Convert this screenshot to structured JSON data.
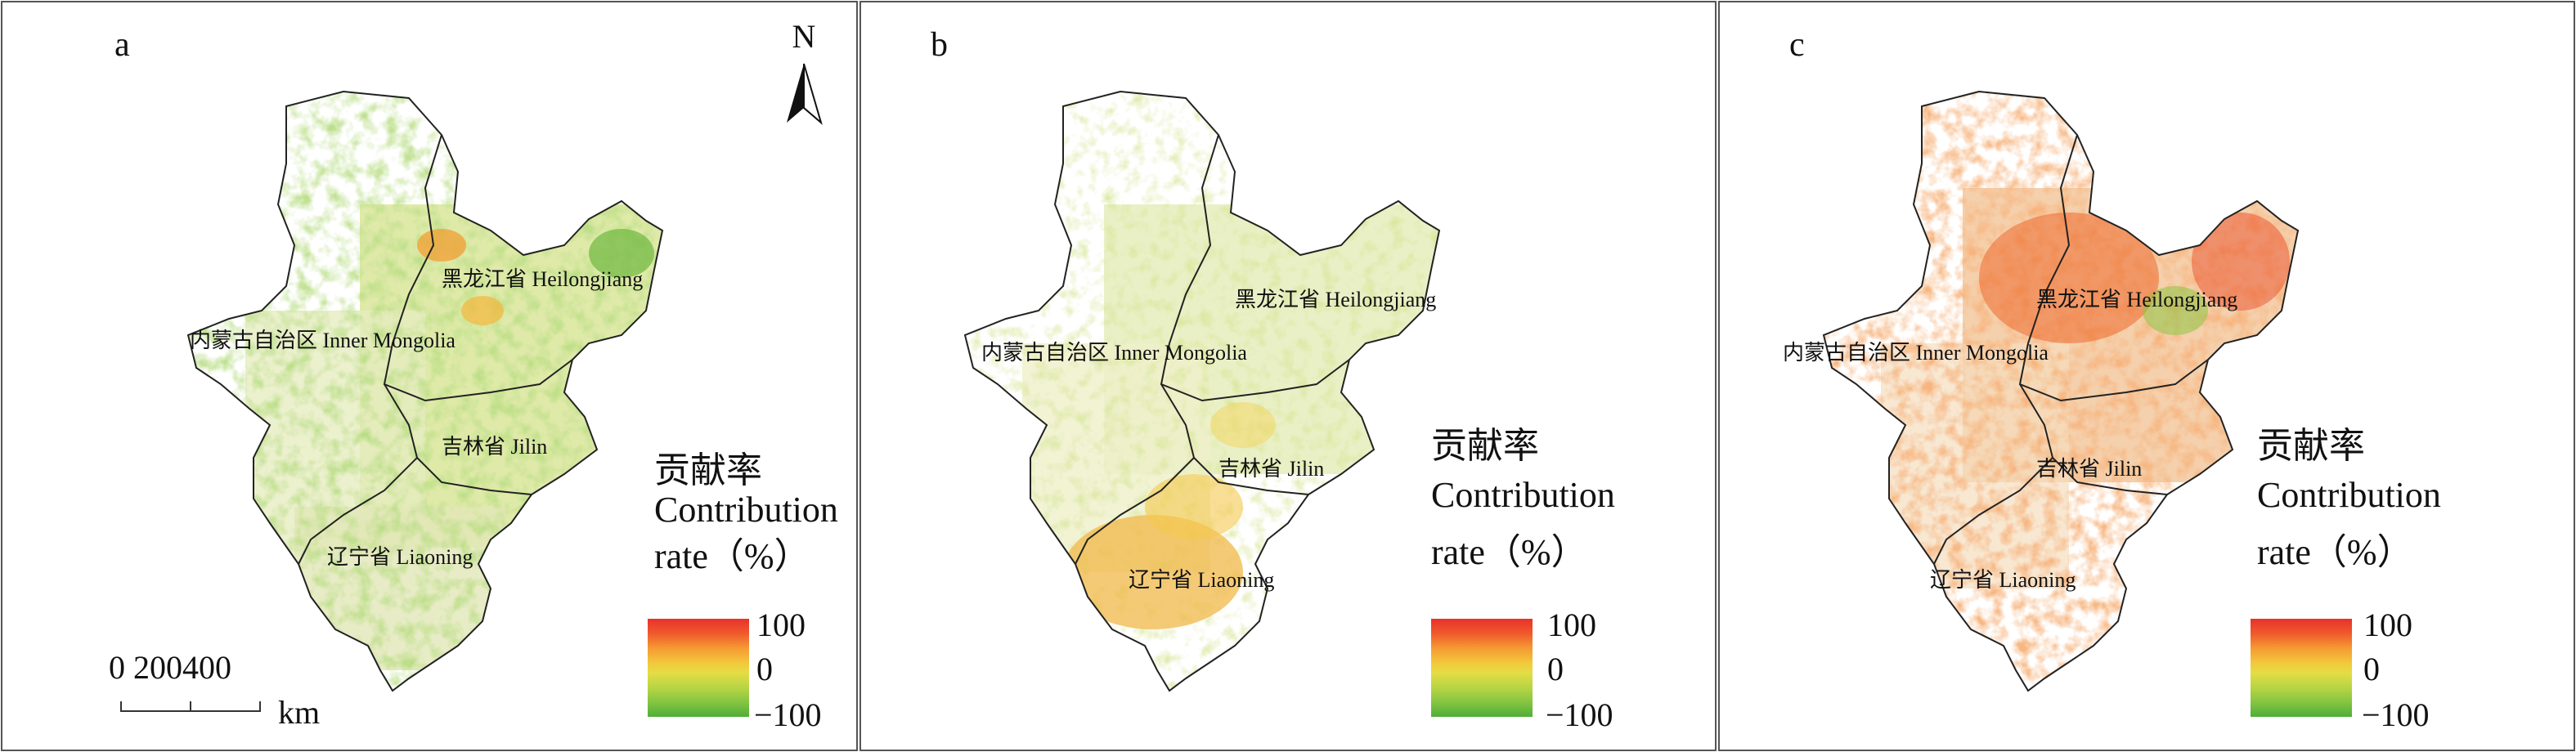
{
  "panels": [
    {
      "id": "a",
      "label": "a",
      "province_labels": {
        "heilongjiang": "黑龙江省 Heilongjiang",
        "inner_mongolia": "内蒙古自治区 Inner Mongolia",
        "jilin": "吉林省 Jilin",
        "liaoning": "辽宁省 Liaoning"
      },
      "legend": {
        "title_cn": "贡献率",
        "title_en_line1": "Contribution",
        "title_en_line2": "rate（%）",
        "max": "100",
        "mid": "0",
        "min": "−100"
      },
      "dominant_pattern": "green-yellow"
    },
    {
      "id": "b",
      "label": "b",
      "province_labels": {
        "heilongjiang": "黑龙江省 Heilongjiang",
        "inner_mongolia": "内蒙古自治区 Inner Mongolia",
        "jilin": "吉林省 Jilin",
        "liaoning": "辽宁省 Liaoning"
      },
      "legend": {
        "title_cn": "贡献率",
        "title_en_line1": "Contribution",
        "title_en_line2": "rate（%）",
        "max": "100",
        "mid": "0",
        "min": "−100"
      },
      "dominant_pattern": "yellow-green with orange in south"
    },
    {
      "id": "c",
      "label": "c",
      "province_labels": {
        "heilongjiang": "黑龙江省 Heilongjiang",
        "inner_mongolia": "内蒙古自治区 Inner Mongolia",
        "jilin": "吉林省 Jilin",
        "liaoning": "辽宁省 Liaoning"
      },
      "legend": {
        "title_cn": "贡献率",
        "title_en_line1": "Contribution",
        "title_en_line2": "rate（%）",
        "max": "100",
        "mid": "0",
        "min": "−100"
      },
      "dominant_pattern": "orange-red"
    }
  ],
  "north_arrow": {
    "label": "N"
  },
  "scale_bar": {
    "ticks": "0   200400",
    "unit": "km"
  },
  "colors": {
    "legend_ramp": [
      "#e8312b",
      "#ef5a2b",
      "#f3802e",
      "#f7a434",
      "#f5c53a",
      "#e8dc42",
      "#c7d845",
      "#9ccd43",
      "#74bf40",
      "#52b03a"
    ],
    "boundary": "#222222",
    "frame": "#555555",
    "panel_a_fill": "#dfe9b0",
    "panel_b_fill": "#ecefc0",
    "panel_c_fill": "#f7e6c8"
  },
  "icons": [
    "north-arrow-icon",
    "scale-bar-icon"
  ]
}
